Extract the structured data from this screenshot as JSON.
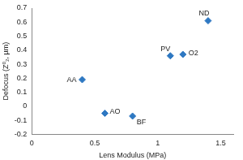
{
  "chart_data": {
    "type": "scatter",
    "x_label": "Lens Modulus (MPa)",
    "y_label": "Defocus (Z⁰₂, µm)",
    "point_labels": [
      "AA",
      "AO",
      "BF",
      "PV",
      "O2",
      "ND"
    ],
    "x": [
      0.4,
      0.58,
      0.8,
      1.1,
      1.2,
      1.4
    ],
    "values": [
      0.19,
      -0.05,
      -0.07,
      0.36,
      0.37,
      0.61
    ],
    "color": "#2e78c2",
    "marker": "diamond",
    "xlim": [
      0,
      1.6
    ],
    "xticks": [
      0,
      0.5,
      1,
      1.5
    ],
    "ylim": [
      -0.2,
      0.7
    ],
    "yticks": [
      -0.2,
      -0.1,
      0,
      0.1,
      0.2,
      0.3,
      0.4,
      0.5,
      0.6,
      0.7
    ],
    "grid": false
  }
}
